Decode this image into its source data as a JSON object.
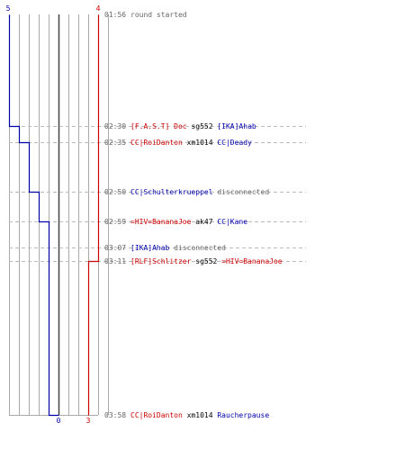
{
  "chart_data": {
    "type": "timeline",
    "team_colors": {
      "blue": "#0000aa",
      "red": "#cc0000",
      "neutral": "#666666",
      "time": "#666666",
      "grid": "#aaaaaa",
      "center": "#444444",
      "separator": "#bbbbbb"
    },
    "players": {
      "blue": {
        "start": 5,
        "end": 0
      },
      "red": {
        "start": 4,
        "end": 3
      }
    },
    "y_range": [
      "01:56",
      "03:58"
    ],
    "blue_steps": [
      {
        "time": "02:30",
        "count": 4
      },
      {
        "time": "02:35",
        "count": 3
      },
      {
        "time": "02:50",
        "count": 2
      },
      {
        "time": "02:59",
        "count": 1
      },
      {
        "time": "03:58",
        "count": 0
      }
    ],
    "red_steps": [
      {
        "time": "03:11",
        "count": 3
      }
    ],
    "events": [
      {
        "time": "01:56",
        "separator": false,
        "parts": [
          {
            "text": "round started",
            "team": "neutral"
          }
        ]
      },
      {
        "time": "02:30",
        "separator": true,
        "parts": [
          {
            "text": "[F.A.S.T] Doc",
            "team": "red"
          },
          {
            "text": "sg552",
            "team": "weapon"
          },
          {
            "text": "[IKA]Ahab",
            "team": "blue"
          }
        ]
      },
      {
        "time": "02:35",
        "separator": true,
        "parts": [
          {
            "text": "CC|RoiDanton",
            "team": "red"
          },
          {
            "text": "xm1014",
            "team": "weapon"
          },
          {
            "text": "CC|Deady",
            "team": "blue"
          }
        ]
      },
      {
        "time": "02:50",
        "separator": true,
        "parts": [
          {
            "text": "CC|Schulterkrueppel",
            "team": "blue"
          },
          {
            "text": "disconnected",
            "team": "neutral"
          }
        ]
      },
      {
        "time": "02:59",
        "separator": true,
        "parts": [
          {
            "text": "=HIV=BananaJoe",
            "team": "red"
          },
          {
            "text": "ak47",
            "team": "weapon"
          },
          {
            "text": "CC|Kane",
            "team": "blue"
          }
        ]
      },
      {
        "time": "03:07",
        "separator": true,
        "parts": [
          {
            "text": "[IKA]Ahab",
            "team": "blue"
          },
          {
            "text": "disconnected",
            "team": "neutral"
          }
        ]
      },
      {
        "time": "03:11",
        "separator": true,
        "parts": [
          {
            "text": "[RLF]Schlitzer",
            "team": "red"
          },
          {
            "text": "sg552",
            "team": "weapon"
          },
          {
            "text": "=HIV=BananaJoe",
            "team": "red"
          }
        ]
      },
      {
        "time": "03:58",
        "separator": false,
        "parts": [
          {
            "text": "CC|RoiDanton",
            "team": "red"
          },
          {
            "text": "xm1014",
            "team": "weapon"
          },
          {
            "text": "Raucherpause",
            "team": "blue"
          }
        ]
      }
    ]
  }
}
